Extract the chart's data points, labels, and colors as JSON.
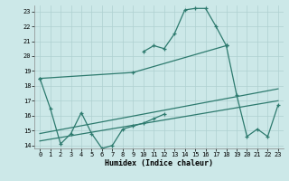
{
  "xlabel": "Humidex (Indice chaleur)",
  "xlim": [
    -0.5,
    23.5
  ],
  "ylim": [
    13.8,
    23.4
  ],
  "yticks": [
    14,
    15,
    16,
    17,
    18,
    19,
    20,
    21,
    22,
    23
  ],
  "xticks": [
    0,
    1,
    2,
    3,
    4,
    5,
    6,
    7,
    8,
    9,
    10,
    11,
    12,
    13,
    14,
    15,
    16,
    17,
    18,
    19,
    20,
    21,
    22,
    23
  ],
  "bg_color": "#cce8e8",
  "grid_color": "#aed0d0",
  "line_color": "#2d7a6e",
  "series": [
    {
      "x": [
        10,
        11,
        12,
        13,
        14,
        15,
        16,
        17,
        18
      ],
      "y": [
        20.3,
        20.7,
        20.5,
        21.5,
        23.1,
        23.2,
        23.2,
        22.0,
        20.7
      ],
      "has_markers": true
    },
    {
      "x": [
        18,
        19,
        20,
        21,
        22,
        23
      ],
      "y": [
        20.7,
        17.4,
        14.6,
        15.1,
        14.6,
        16.7
      ],
      "has_markers": true
    },
    {
      "x": [
        0,
        9,
        18
      ],
      "y": [
        18.5,
        18.9,
        20.7
      ],
      "has_markers": true
    },
    {
      "x": [
        0,
        1,
        2,
        3,
        4,
        5,
        6,
        7,
        8,
        9,
        10,
        11,
        12
      ],
      "y": [
        18.5,
        16.5,
        14.1,
        14.8,
        16.2,
        14.8,
        13.8,
        14.0,
        15.1,
        15.3,
        15.5,
        15.8,
        16.1
      ],
      "has_markers": true
    },
    {
      "x": [
        0,
        23
      ],
      "y": [
        14.3,
        17.0
      ],
      "has_markers": false
    },
    {
      "x": [
        0,
        23
      ],
      "y": [
        14.8,
        17.8
      ],
      "has_markers": false
    }
  ]
}
